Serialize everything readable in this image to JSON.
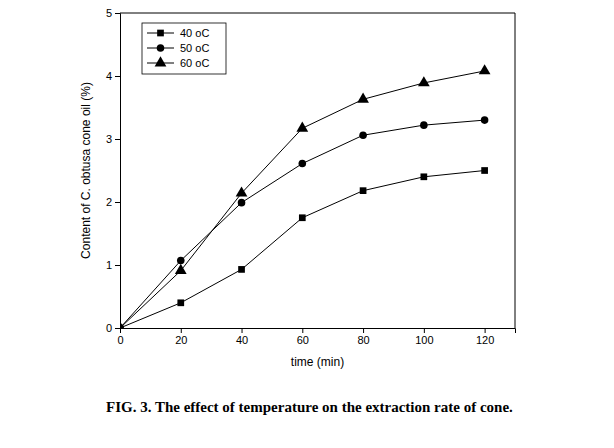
{
  "chart_data": {
    "type": "line",
    "title": "FIG. 3. The effect of temperature on the extraction rate of cone.",
    "x_label": "time (min)",
    "y_label": "Content of C. obtusa cone oil (%)",
    "x": [
      0,
      20,
      40,
      60,
      80,
      100,
      120
    ],
    "series": [
      {
        "name": "40 oC",
        "color": "#000000",
        "marker": "square",
        "values": [
          0,
          0.4,
          0.93,
          1.75,
          2.18,
          2.4,
          2.5
        ]
      },
      {
        "name": "50 oC",
        "color": "#000000",
        "marker": "circle",
        "values": [
          0,
          1.07,
          1.99,
          2.61,
          3.06,
          3.22,
          3.3
        ]
      },
      {
        "name": "60 oC",
        "color": "#000000",
        "marker": "triangle",
        "values": [
          0,
          0.91,
          2.14,
          3.17,
          3.63,
          3.89,
          4.08
        ]
      }
    ],
    "xlim": [
      0,
      130
    ],
    "xticks": [
      0,
      20,
      40,
      60,
      80,
      100,
      120
    ],
    "ylim": [
      0,
      5
    ],
    "yticks": [
      0,
      1,
      2,
      3,
      4,
      5
    ],
    "grid": false,
    "legend": "upper left"
  }
}
